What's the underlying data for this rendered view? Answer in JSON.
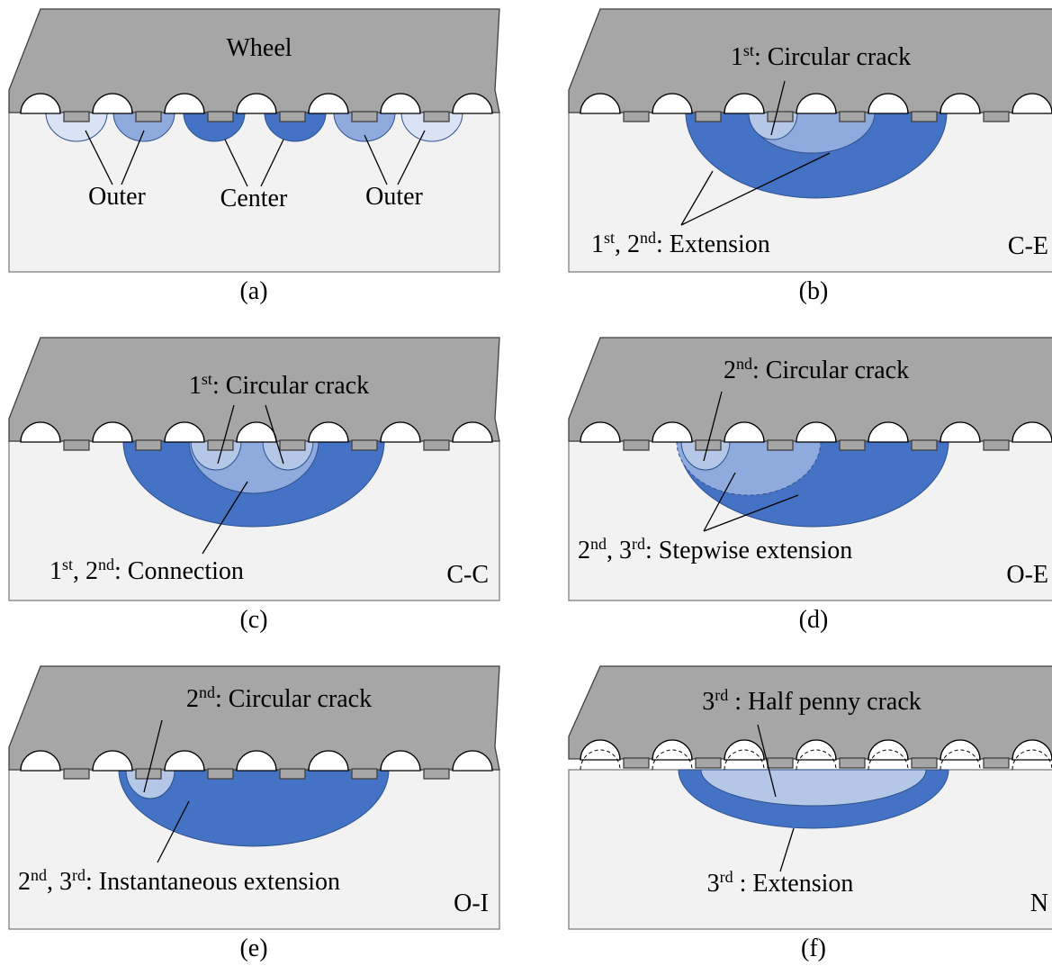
{
  "panels": [
    {
      "label": "(a)",
      "wheel": "Wheel",
      "annotations": [
        "Outer",
        "Center",
        "Outer"
      ]
    },
    {
      "label": "(b)",
      "code": "C-E",
      "annotations": [
        [
          {
            "text": "1"
          },
          {
            "sup": "st"
          },
          {
            "text": ": Circular crack"
          }
        ],
        [
          {
            "text": "1"
          },
          {
            "sup": "st"
          },
          {
            "text": ", 2"
          },
          {
            "sup": "nd"
          },
          {
            "text": ": Extension"
          }
        ]
      ]
    },
    {
      "label": "(c)",
      "code": "C-C",
      "annotations": [
        [
          {
            "text": "1"
          },
          {
            "sup": "st"
          },
          {
            "text": ": Circular crack"
          }
        ],
        [
          {
            "text": "1"
          },
          {
            "sup": "st"
          },
          {
            "text": ", 2"
          },
          {
            "sup": "nd"
          },
          {
            "text": ": Connection"
          }
        ]
      ]
    },
    {
      "label": "(d)",
      "code": "O-E",
      "annotations": [
        [
          {
            "text": "2"
          },
          {
            "sup": "nd"
          },
          {
            "text": ": Circular crack"
          }
        ],
        [
          {
            "text": "2"
          },
          {
            "sup": "nd"
          },
          {
            "text": ", 3"
          },
          {
            "sup": "rd"
          },
          {
            "text": ": Stepwise extension"
          }
        ]
      ]
    },
    {
      "label": "(e)",
      "code": "O-I",
      "annotations": [
        [
          {
            "text": "2"
          },
          {
            "sup": "nd"
          },
          {
            "text": ": Circular crack"
          }
        ],
        [
          {
            "text": "2"
          },
          {
            "sup": "nd"
          },
          {
            "text": ", 3"
          },
          {
            "sup": "rd"
          },
          {
            "text": ": Instantaneous extension"
          }
        ]
      ]
    },
    {
      "label": "(f)",
      "code": "N",
      "annotations": [
        [
          {
            "text": "3"
          },
          {
            "sup": "rd"
          },
          {
            "text": " : Half penny crack"
          }
        ],
        [
          {
            "text": "3"
          },
          {
            "sup": "rd"
          },
          {
            "text": " : Extension"
          }
        ]
      ]
    }
  ]
}
